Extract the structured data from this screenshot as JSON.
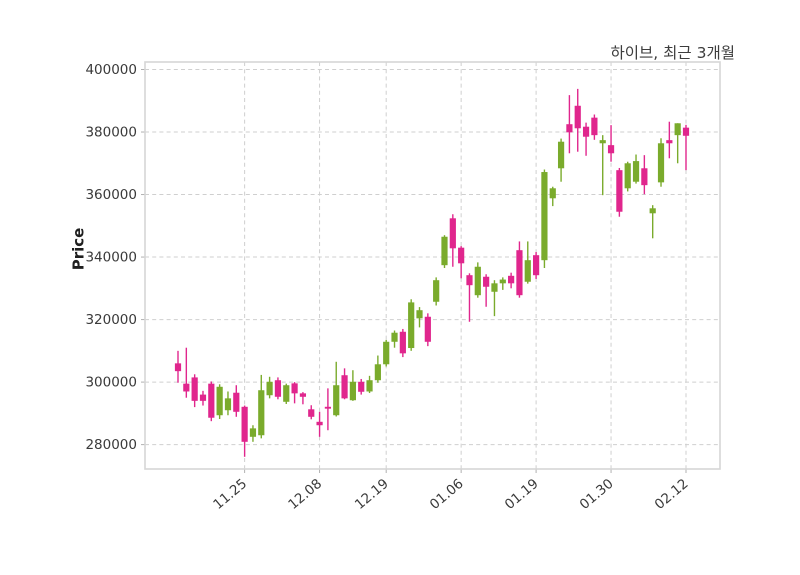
{
  "chart": {
    "title": "하이브, 최근 3개월",
    "ylabel": "Price"
  },
  "chart_data": {
    "type": "candlestick",
    "title": "하이브, 최근 3개월",
    "ylabel": "Price",
    "xlabel": "",
    "grid": "dashed",
    "legend": "none",
    "up_color": "#7aab2c",
    "down_color": "#e0268d",
    "grid_color": "#cfcfcf",
    "spine_color": "#d6d6d6",
    "ylim": [
      272200,
      402400
    ],
    "yticks": [
      280000,
      300000,
      320000,
      340000,
      360000,
      380000,
      400000
    ],
    "xtick_labels": [
      "11.25",
      "12.08",
      "12.19",
      "01.06",
      "01.19",
      "01.30",
      "02.12"
    ],
    "xtick_indices": [
      8,
      17,
      25,
      34,
      43,
      52,
      61
    ],
    "candles_note": "each candle is [open, high, low, close] in KRW",
    "candles": [
      [
        306000,
        310000,
        299800,
        303500
      ],
      [
        299500,
        311000,
        295000,
        297000
      ],
      [
        301500,
        302500,
        292000,
        294000
      ],
      [
        296000,
        297200,
        292500,
        294000
      ],
      [
        299500,
        300200,
        287500,
        288600
      ],
      [
        289400,
        299300,
        288200,
        298500
      ],
      [
        291000,
        297000,
        289400,
        294800
      ],
      [
        296600,
        299000,
        288900,
        290500
      ],
      [
        292100,
        292500,
        276100,
        280900
      ],
      [
        282500,
        286200,
        280900,
        285200
      ],
      [
        283000,
        302300,
        282000,
        297400
      ],
      [
        295800,
        301700,
        294800,
        300100
      ],
      [
        300600,
        301500,
        294500,
        295300
      ],
      [
        293700,
        299500,
        293000,
        299000
      ],
      [
        299600,
        300000,
        293200,
        296400
      ],
      [
        296400,
        296800,
        292900,
        295300
      ],
      [
        291300,
        292600,
        288100,
        288900
      ],
      [
        287300,
        290500,
        282500,
        286200
      ],
      [
        292100,
        298000,
        284600,
        291500
      ],
      [
        289400,
        306500,
        289000,
        299000
      ],
      [
        302200,
        304400,
        294500,
        294800
      ],
      [
        294200,
        303800,
        294000,
        300100
      ],
      [
        300100,
        301000,
        296000,
        296900
      ],
      [
        297000,
        302000,
        296500,
        300600
      ],
      [
        300600,
        308500,
        299800,
        305700
      ],
      [
        305700,
        313500,
        305000,
        312900
      ],
      [
        312900,
        316500,
        311000,
        315800
      ],
      [
        316100,
        317000,
        308000,
        309200
      ],
      [
        310900,
        326500,
        310000,
        325500
      ],
      [
        320400,
        324000,
        317500,
        323000
      ],
      [
        320900,
        322000,
        311500,
        312900
      ],
      [
        325700,
        333500,
        324500,
        332600
      ],
      [
        337400,
        347000,
        336500,
        346500
      ],
      [
        352400,
        353700,
        336900,
        342800
      ],
      [
        343000,
        343500,
        333200,
        338000
      ],
      [
        334200,
        334800,
        319300,
        331000
      ],
      [
        327800,
        338300,
        327000,
        336900
      ],
      [
        333700,
        334500,
        324100,
        330500
      ],
      [
        328900,
        332600,
        321100,
        331600
      ],
      [
        331600,
        333500,
        329500,
        332800
      ],
      [
        334000,
        335000,
        330000,
        331600
      ],
      [
        342200,
        345000,
        327000,
        327800
      ],
      [
        332100,
        345000,
        331500,
        339000
      ],
      [
        340600,
        341600,
        333000,
        334200
      ],
      [
        339000,
        368000,
        336500,
        367200
      ],
      [
        358800,
        362500,
        356300,
        362000
      ],
      [
        368400,
        377900,
        364100,
        376900
      ],
      [
        382500,
        391800,
        373200,
        379900
      ],
      [
        388400,
        393800,
        373700,
        381200
      ],
      [
        381700,
        383000,
        372400,
        378500
      ],
      [
        384600,
        385600,
        377500,
        379000
      ],
      [
        376400,
        379000,
        359800,
        377400
      ],
      [
        375800,
        382200,
        370500,
        373200
      ],
      [
        367800,
        368500,
        352900,
        354500
      ],
      [
        362000,
        370500,
        361000,
        370000
      ],
      [
        364100,
        372800,
        363500,
        370700
      ],
      [
        368400,
        372600,
        360100,
        363000
      ],
      [
        354000,
        356600,
        346000,
        355600
      ],
      [
        363900,
        378000,
        362500,
        376400
      ],
      [
        377400,
        383300,
        371600,
        376400
      ],
      [
        379000,
        382800,
        370000,
        382800
      ],
      [
        381400,
        382300,
        367800,
        378800
      ]
    ]
  }
}
